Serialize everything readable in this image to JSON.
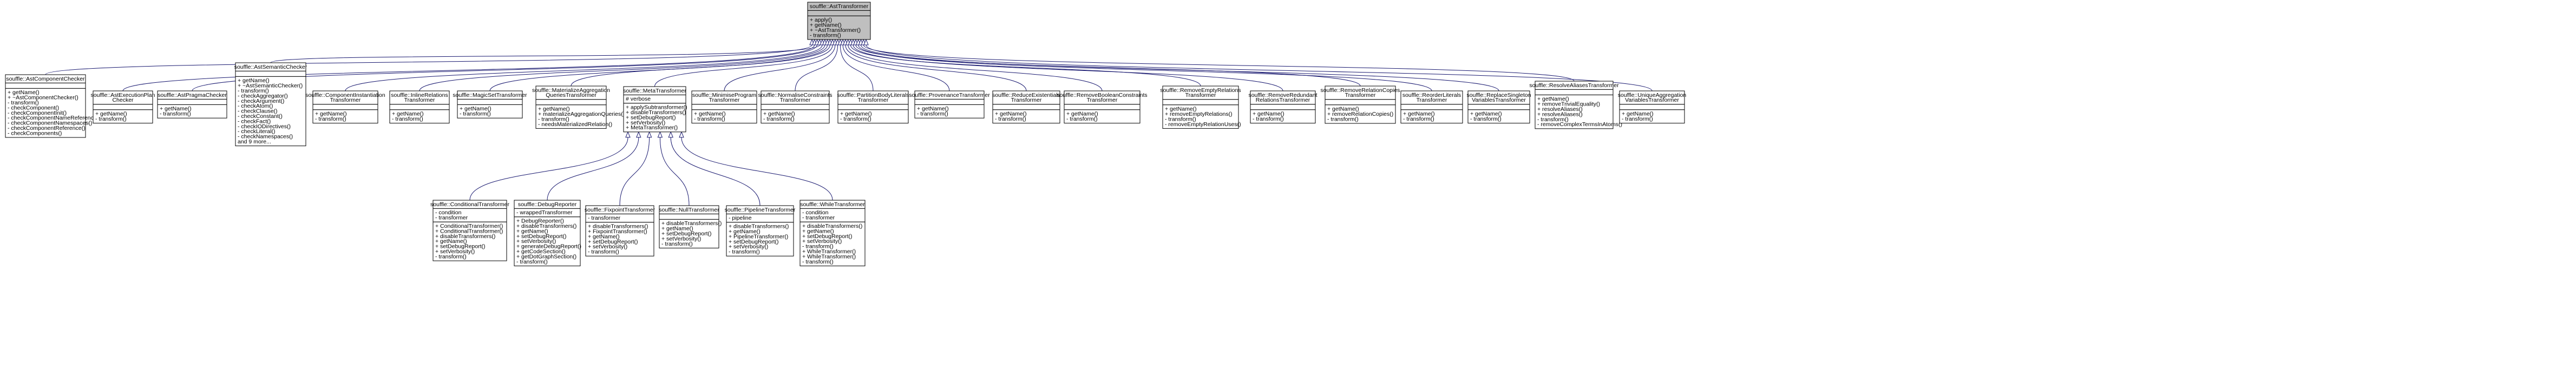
{
  "classes": [
    {
      "id": "base",
      "title": [
        "souffle::AstTransformer"
      ],
      "attrs": [],
      "methods": [
        "+ apply()",
        "+ getName()",
        "+ ~AstTransformer()",
        "- transform()"
      ],
      "highlight": true
    },
    {
      "id": "component-checker",
      "title": [
        "souffle::AstComponentChecker"
      ],
      "attrs": [],
      "methods": [
        "+ getName()",
        "+ ~AstComponentChecker()",
        "- transform()",
        "- checkComponent()",
        "- checkComponentInit()",
        "- checkComponentNameReference()",
        "- checkComponentNamespaces()",
        "- checkComponentReference()",
        "- checkComponents()"
      ]
    },
    {
      "id": "execution-plan-checker",
      "title": [
        "souffle::AstExecutionPlan",
        "Checker"
      ],
      "attrs": [],
      "methods": [
        "+ getName()",
        "- transform()"
      ]
    },
    {
      "id": "pragma-checker",
      "title": [
        "souffle::AstPragmaChecker"
      ],
      "attrs": [],
      "methods": [
        "+ getName()",
        "- transform()"
      ]
    },
    {
      "id": "semantic-checker",
      "title": [
        "souffle::AstSemanticChecker"
      ],
      "attrs": [],
      "methods": [
        "+ getName()",
        "+ ~AstSemanticChecker()",
        "- transform()",
        "- checkAggregator()",
        "- checkArgument()",
        "- checkAtom()",
        "- checkClause()",
        "- checkConstant()",
        "- checkFact()",
        "- checkIODirectives()",
        "- checkLiteral()",
        "- checkNamespaces()",
        "and 9 more..."
      ]
    },
    {
      "id": "component-instantiation",
      "title": [
        "souffle::ComponentInstantiation",
        "Transformer"
      ],
      "attrs": [],
      "methods": [
        "+ getName()",
        "- transform()"
      ]
    },
    {
      "id": "inline-relations",
      "title": [
        "souffle::InlineRelations",
        "Transformer"
      ],
      "attrs": [],
      "methods": [
        "+ getName()",
        "- transform()"
      ]
    },
    {
      "id": "magic-set",
      "title": [
        "souffle::MagicSetTransformer"
      ],
      "attrs": [],
      "methods": [
        "+ getName()",
        "- transform()"
      ]
    },
    {
      "id": "materialize-aggregation",
      "title": [
        "souffle::MaterializeAggregation",
        "QueriesTransformer"
      ],
      "attrs": [],
      "methods": [
        "+ getName()",
        "+ materializeAggregationQueries()",
        "- transform()",
        "- needsMaterializedRelation()"
      ]
    },
    {
      "id": "meta",
      "title": [
        "souffle::MetaTransformer"
      ],
      "attrs": [
        "# verbose"
      ],
      "methods": [
        "+ applySubtransformer()",
        "+ disableTransformers()",
        "+ setDebugReport()",
        "+ setVerbosity()",
        "+ MetaTransformer()"
      ]
    },
    {
      "id": "minimise-program",
      "title": [
        "souffle::MinimiseProgram",
        "Transformer"
      ],
      "attrs": [],
      "methods": [
        "+ getName()",
        "- transform()"
      ]
    },
    {
      "id": "normalise-constraints",
      "title": [
        "souffle::NormaliseConstraints",
        "Transformer"
      ],
      "attrs": [],
      "methods": [
        "+ getName()",
        "- transform()"
      ]
    },
    {
      "id": "partition-body-literals",
      "title": [
        "souffle::PartitionBodyLiterals",
        "Transformer"
      ],
      "attrs": [],
      "methods": [
        "+ getName()",
        "- transform()"
      ]
    },
    {
      "id": "provenance",
      "title": [
        "souffle::ProvenanceTransformer"
      ],
      "attrs": [],
      "methods": [
        "+ getName()",
        "- transform()"
      ]
    },
    {
      "id": "reduce-existentials",
      "title": [
        "souffle::ReduceExistentials",
        "Transformer"
      ],
      "attrs": [],
      "methods": [
        "+ getName()",
        "- transform()"
      ]
    },
    {
      "id": "remove-boolean-constraints",
      "title": [
        "souffle::RemoveBooleanConstraints",
        "Transformer"
      ],
      "attrs": [],
      "methods": [
        "+ getName()",
        "- transform()"
      ]
    },
    {
      "id": "remove-empty-relations",
      "title": [
        "souffle::RemoveEmptyRelations",
        "Transformer"
      ],
      "attrs": [],
      "methods": [
        "+ getName()",
        "+ removeEmptyRelations()",
        "- transform()",
        "- removeEmptyRelationUses()"
      ]
    },
    {
      "id": "remove-redundant-relations",
      "title": [
        "souffle::RemoveRedundant",
        "RelationsTransformer"
      ],
      "attrs": [],
      "methods": [
        "+ getName()",
        "- transform()"
      ]
    },
    {
      "id": "remove-relation-copies",
      "title": [
        "souffle::RemoveRelationCopies",
        "Transformer"
      ],
      "attrs": [],
      "methods": [
        "+ getName()",
        "+ removeRelationCopies()",
        "- transform()"
      ]
    },
    {
      "id": "reorder-literals",
      "title": [
        "souffle::ReorderLiterals",
        "Transformer"
      ],
      "attrs": [],
      "methods": [
        "+ getName()",
        "- transform()"
      ]
    },
    {
      "id": "replace-singleton",
      "title": [
        "souffle::ReplaceSingleton",
        "VariablesTransformer"
      ],
      "attrs": [],
      "methods": [
        "+ getName()",
        "- transform()"
      ]
    },
    {
      "id": "resolve-aliases",
      "title": [
        "souffle::ResolveAliasesTransformer"
      ],
      "attrs": [],
      "methods": [
        "+ getName()",
        "+ removeTrivialEquality()",
        "+ resolveAliases()",
        "+ resolveAliases()",
        "- transform()",
        "- removeComplexTermsInAtoms()"
      ]
    },
    {
      "id": "unique-aggregation",
      "title": [
        "souffle::UniqueAggregation",
        "VariablesTransformer"
      ],
      "attrs": [],
      "methods": [
        "+ getName()",
        "- transform()"
      ]
    },
    {
      "id": "conditional",
      "title": [
        "souffle::ConditionalTransformer"
      ],
      "attrs": [
        "- condition",
        "- transformer"
      ],
      "methods": [
        "+ ConditionalTransformer()",
        "+ ConditionalTransformer()",
        "+ disableTransformers()",
        "+ getName()",
        "+ setDebugReport()",
        "+ setVerbosity()",
        "- transform()"
      ]
    },
    {
      "id": "debug-reporter",
      "title": [
        "souffle::DebugReporter"
      ],
      "attrs": [
        "- wrappedTransformer"
      ],
      "methods": [
        "+ DebugReporter()",
        "+ disableTransformers()",
        "+ getName()",
        "+ setDebugReport()",
        "+ setVerbosity()",
        "+ generateDebugReport()",
        "+ getCodeSection()",
        "+ getDotGraphSection()",
        "- transform()"
      ]
    },
    {
      "id": "fixpoint",
      "title": [
        "souffle::FixpointTransformer"
      ],
      "attrs": [
        "- transformer"
      ],
      "methods": [
        "+ disableTransformers()",
        "+ FixpointTransformer()",
        "+ getName()",
        "+ setDebugReport()",
        "+ setVerbosity()",
        "- transform()"
      ]
    },
    {
      "id": "null",
      "title": [
        "souffle::NullTransformer"
      ],
      "attrs": [],
      "methods": [
        "+ disableTransformers()",
        "+ getName()",
        "+ setDebugReport()",
        "+ setVerbosity()",
        "- transform()"
      ]
    },
    {
      "id": "pipeline",
      "title": [
        "souffle::PipelineTransformer"
      ],
      "attrs": [
        "- pipeline"
      ],
      "methods": [
        "+ disableTransformers()",
        "+ getName()",
        "+ PipelineTransformer()",
        "+ setDebugReport()",
        "+ setVerbosity()",
        "- transform()"
      ]
    },
    {
      "id": "while",
      "title": [
        "souffle::WhileTransformer"
      ],
      "attrs": [
        "- condition",
        "- transformer"
      ],
      "methods": [
        "+ disableTransformers()",
        "+ getName()",
        "+ setDebugReport()",
        "+ setVerbosity()",
        "- transform()",
        "+ WhileTransformer()",
        "+ WhileTransformer()",
        "- transform()"
      ]
    }
  ],
  "inheritance": [
    [
      "component-checker",
      "base"
    ],
    [
      "execution-plan-checker",
      "base"
    ],
    [
      "pragma-checker",
      "base"
    ],
    [
      "semantic-checker",
      "base"
    ],
    [
      "component-instantiation",
      "base"
    ],
    [
      "inline-relations",
      "base"
    ],
    [
      "magic-set",
      "base"
    ],
    [
      "materialize-aggregation",
      "base"
    ],
    [
      "meta",
      "base"
    ],
    [
      "minimise-program",
      "base"
    ],
    [
      "normalise-constraints",
      "base"
    ],
    [
      "partition-body-literals",
      "base"
    ],
    [
      "provenance",
      "base"
    ],
    [
      "reduce-existentials",
      "base"
    ],
    [
      "remove-boolean-constraints",
      "base"
    ],
    [
      "remove-empty-relations",
      "base"
    ],
    [
      "remove-redundant-relations",
      "base"
    ],
    [
      "remove-relation-copies",
      "base"
    ],
    [
      "reorder-literals",
      "base"
    ],
    [
      "replace-singleton",
      "base"
    ],
    [
      "resolve-aliases",
      "base"
    ],
    [
      "unique-aggregation",
      "base"
    ],
    [
      "conditional",
      "meta"
    ],
    [
      "debug-reporter",
      "meta"
    ],
    [
      "fixpoint",
      "meta"
    ],
    [
      "null",
      "meta"
    ],
    [
      "pipeline",
      "meta"
    ],
    [
      "while",
      "meta"
    ]
  ],
  "colors": {
    "edge": "#191970",
    "base_fill": "#bfbfbf",
    "box_fill": "#ffffff",
    "border": "#000000"
  }
}
